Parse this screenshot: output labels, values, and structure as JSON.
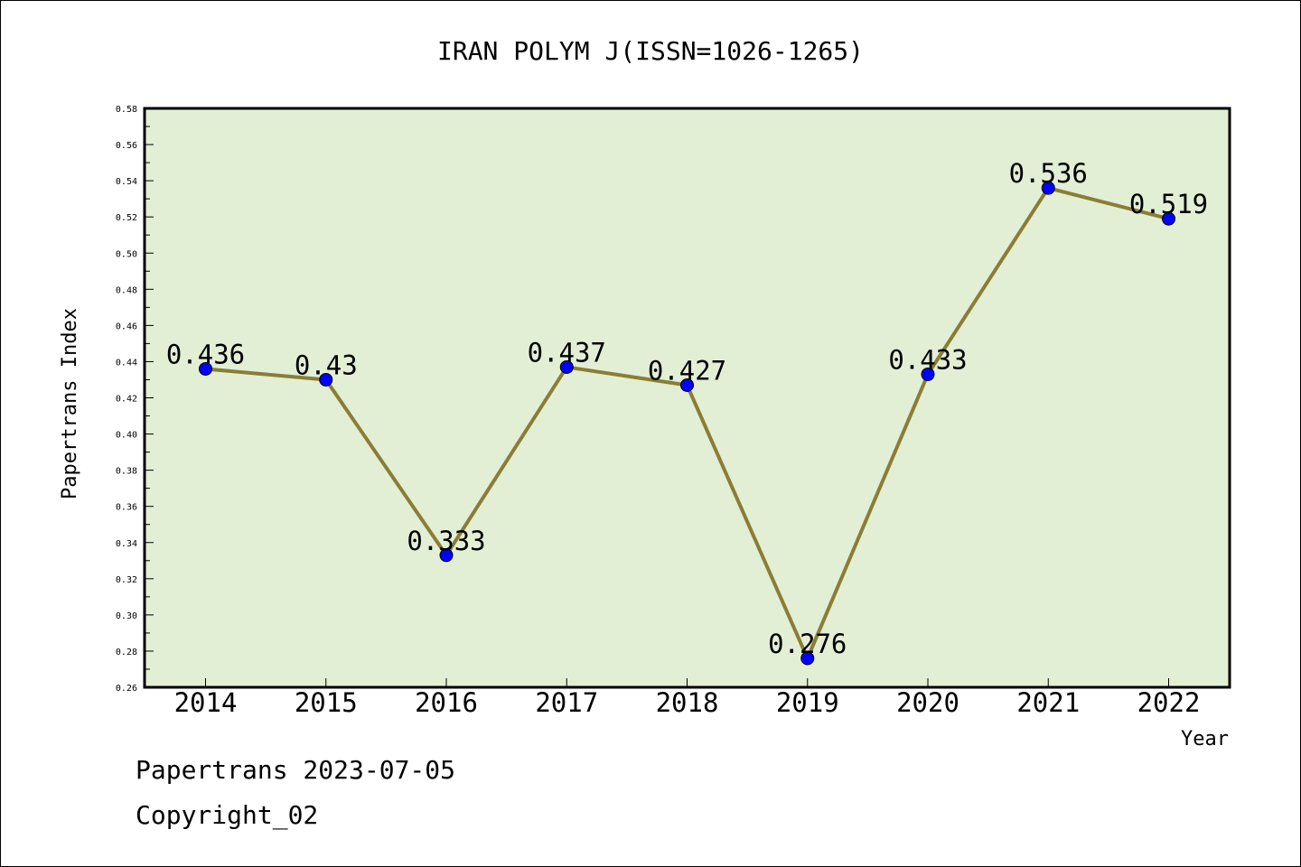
{
  "chart_data": {
    "type": "line",
    "title": "IRAN POLYM J(ISSN=1026-1265)",
    "xlabel": "Year",
    "ylabel": "Papertrans Index",
    "categories": [
      "2014",
      "2015",
      "2016",
      "2017",
      "2018",
      "2019",
      "2020",
      "2021",
      "2022"
    ],
    "values": [
      0.436,
      0.43,
      0.333,
      0.437,
      0.427,
      0.276,
      0.433,
      0.536,
      0.519
    ],
    "data_labels": [
      "0.436",
      "0.43",
      "0.333",
      "0.437",
      "0.427",
      "0.276",
      "0.433",
      "0.536",
      "0.519"
    ],
    "ylim": [
      0.26,
      0.58
    ],
    "yticks": [
      "0.26",
      "0.28",
      "0.30",
      "0.32",
      "0.34",
      "0.36",
      "0.38",
      "0.40",
      "0.42",
      "0.44",
      "0.46",
      "0.48",
      "0.50",
      "0.52",
      "0.54",
      "0.56",
      "0.58"
    ],
    "grid": false,
    "colors": {
      "plot_background": "#e2efd5",
      "line": "#8b7d35",
      "marker": "#0000ff"
    }
  },
  "footer": {
    "date_line": "Papertrans 2023-07-05",
    "copyright": "Copyright_02"
  }
}
